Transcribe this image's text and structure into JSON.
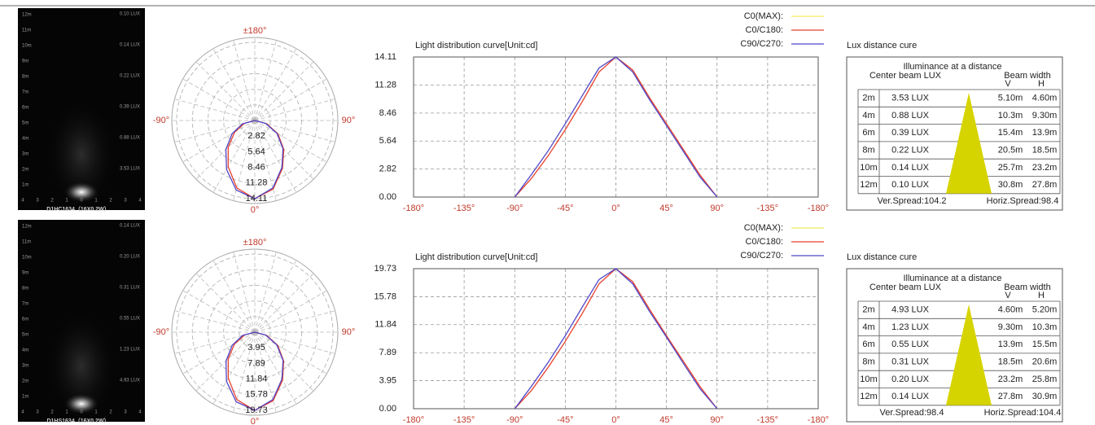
{
  "chart_data": [
    {
      "type": "polar",
      "angle_ticks": [
        {
          "value": 180,
          "label": "±180°"
        },
        {
          "value": -90,
          "label": "-90°"
        },
        {
          "value": 90,
          "label": "90°"
        },
        {
          "value": 0,
          "label": "0°"
        }
      ],
      "rlim": [
        0,
        14.11
      ],
      "rticks": [
        2.82,
        5.64,
        8.46,
        11.28,
        14.11
      ],
      "x": [
        -90,
        -75,
        -60,
        -45,
        -30,
        -15,
        0,
        15,
        30,
        45,
        60,
        75,
        90
      ],
      "series": [
        {
          "color": "#e8412c",
          "values": [
            0,
            1.9,
            4.2,
            6.8,
            9.6,
            12.6,
            14.11,
            12.8,
            10.0,
            7.4,
            4.8,
            2.2,
            0
          ]
        },
        {
          "color": "#4f46c8",
          "values": [
            0,
            2.3,
            4.7,
            7.4,
            10.2,
            13.0,
            14.11,
            12.6,
            9.8,
            7.2,
            4.6,
            2.0,
            0
          ]
        }
      ]
    },
    {
      "type": "line",
      "title": "Light distribution curve[Unit:cd]",
      "xlim": [
        -180,
        180
      ],
      "xticks": [
        {
          "value": -180,
          "label": "-180°"
        },
        {
          "value": -135,
          "label": "-135°"
        },
        {
          "value": -90,
          "label": "-90°"
        },
        {
          "value": -45,
          "label": "-45°"
        },
        {
          "value": 0,
          "label": "0°"
        },
        {
          "value": 45,
          "label": "45°"
        },
        {
          "value": 90,
          "label": "90°"
        },
        {
          "value": 135,
          "label": "-135°"
        },
        {
          "value": 180,
          "label": "-180°"
        }
      ],
      "ylim": [
        0,
        14.11
      ],
      "yticks": [
        {
          "value": 0,
          "label": "0.00"
        },
        2.82,
        5.64,
        8.46,
        11.28,
        14.11
      ],
      "grid": true,
      "legend": "top-right",
      "x": [
        -90,
        -75,
        -60,
        -45,
        -30,
        -15,
        0,
        15,
        30,
        45,
        60,
        75,
        90
      ],
      "series": [
        {
          "name": "C0(MAX):",
          "color": "#f2ec5c"
        },
        {
          "name": "C0/C180:",
          "color": "#e8412c",
          "values": [
            0,
            1.9,
            4.2,
            6.8,
            9.6,
            12.6,
            14.11,
            12.8,
            10.0,
            7.4,
            4.8,
            2.2,
            0
          ]
        },
        {
          "name": "C90/C270:",
          "color": "#4f46c8",
          "values": [
            0,
            2.3,
            4.7,
            7.4,
            10.2,
            13.0,
            14.11,
            12.6,
            9.8,
            7.2,
            4.6,
            2.0,
            0
          ]
        }
      ]
    },
    {
      "type": "polar",
      "angle_ticks": [
        {
          "value": 180,
          "label": "±180°"
        },
        {
          "value": -90,
          "label": "-90°"
        },
        {
          "value": 90,
          "label": "90°"
        },
        {
          "value": 0,
          "label": "0°"
        }
      ],
      "rlim": [
        0,
        19.73
      ],
      "rticks": [
        3.95,
        7.89,
        11.84,
        15.78,
        19.73
      ],
      "x": [
        -90,
        -75,
        -60,
        -45,
        -30,
        -15,
        0,
        15,
        30,
        45,
        60,
        75,
        90
      ],
      "series": [
        {
          "color": "#e8412c",
          "values": [
            0,
            2.6,
            5.9,
            9.5,
            13.4,
            17.6,
            19.73,
            17.9,
            14.0,
            10.3,
            6.7,
            3.1,
            0
          ]
        },
        {
          "color": "#4f46c8",
          "values": [
            0,
            3.2,
            6.6,
            10.3,
            14.3,
            18.2,
            19.73,
            17.6,
            13.7,
            10.1,
            6.4,
            2.8,
            0
          ]
        }
      ]
    },
    {
      "type": "line",
      "title": "Light distribution curve[Unit:cd]",
      "xlim": [
        -180,
        180
      ],
      "xticks": [
        {
          "value": -180,
          "label": "-180°"
        },
        {
          "value": -135,
          "label": "-135°"
        },
        {
          "value": -90,
          "label": "-90°"
        },
        {
          "value": -45,
          "label": "-45°"
        },
        {
          "value": 0,
          "label": "0°"
        },
        {
          "value": 45,
          "label": "45°"
        },
        {
          "value": 90,
          "label": "90°"
        },
        {
          "value": 135,
          "label": "-135°"
        },
        {
          "value": 180,
          "label": "-180°"
        }
      ],
      "ylim": [
        0,
        19.73
      ],
      "yticks": [
        {
          "value": 0,
          "label": "0.00"
        },
        3.95,
        7.89,
        11.84,
        15.78,
        19.73
      ],
      "grid": true,
      "legend": "top-right",
      "x": [
        -90,
        -75,
        -60,
        -45,
        -30,
        -15,
        0,
        15,
        30,
        45,
        60,
        75,
        90
      ],
      "series": [
        {
          "name": "C0(MAX):",
          "color": "#f2ec5c"
        },
        {
          "name": "C0/C180:",
          "color": "#e8412c",
          "values": [
            0,
            2.6,
            5.9,
            9.5,
            13.4,
            17.6,
            19.73,
            17.9,
            14.0,
            10.3,
            6.7,
            3.1,
            0
          ]
        },
        {
          "name": "C90/C270:",
          "color": "#4f46c8",
          "values": [
            0,
            3.2,
            6.6,
            10.3,
            14.3,
            18.2,
            19.73,
            17.6,
            13.7,
            10.1,
            6.4,
            2.8,
            0
          ]
        }
      ]
    }
  ],
  "beam_images": [
    {
      "y_labels": [
        "12m",
        "11m",
        "10m",
        "9m",
        "8m",
        "7m",
        "6m",
        "5m",
        "4m",
        "3m",
        "2m",
        "1m"
      ],
      "x_labels": [
        "4",
        "3",
        "2",
        "1",
        "0",
        "1",
        "2",
        "3",
        "4"
      ],
      "lux_labels": [
        "0.10 LUX",
        "0.14 LUX",
        "0.22 LUX",
        "0.39 LUX",
        "0.88 LUX",
        "3.53 LUX"
      ],
      "caption": "D1HC1634（16X0.2W）"
    },
    {
      "y_labels": [
        "12m",
        "11m",
        "10m",
        "9m",
        "8m",
        "7m",
        "6m",
        "5m",
        "4m",
        "3m",
        "2m",
        "1m"
      ],
      "x_labels": [
        "4",
        "3",
        "2",
        "1",
        "0",
        "1",
        "2",
        "3",
        "4"
      ],
      "lux_labels": [
        "0.14 LUX",
        "0.20 LUX",
        "0.31 LUX",
        "0.55 LUX",
        "1.23 LUX",
        "4.93 LUX"
      ],
      "caption": "D1HS1634（16X0.2W）"
    }
  ],
  "lux_tables": [
    {
      "heading": "Lux distance cure",
      "title": "Illuminance at a distance",
      "col_center": "Center beam LUX",
      "col_width": "Beam width",
      "col_v": "V",
      "col_h": "H",
      "rows": [
        [
          "2m",
          "3.53 LUX",
          "5.10m",
          "4.60m"
        ],
        [
          "4m",
          "0.88 LUX",
          "10.3m",
          "9.30m"
        ],
        [
          "6m",
          "0.39 LUX",
          "15.4m",
          "13.9m"
        ],
        [
          "8m",
          "0.22 LUX",
          "20.5m",
          "18.5m"
        ],
        [
          "10m",
          "0.14 LUX",
          "25.7m",
          "23.2m"
        ],
        [
          "12m",
          "0.10 LUX",
          "30.8m",
          "27.8m"
        ]
      ],
      "ver_spread": "Ver.Spread:104.2",
      "horiz_spread": "Horiz.Spread:98.4"
    },
    {
      "heading": "Lux distance cure",
      "title": "Illuminance at a distance",
      "col_center": "Center beam LUX",
      "col_width": "Beam width",
      "col_v": "V",
      "col_h": "H",
      "rows": [
        [
          "2m",
          "4.93 LUX",
          "4.60m",
          "5.20m"
        ],
        [
          "4m",
          "1.23 LUX",
          "9.30m",
          "10.3m"
        ],
        [
          "6m",
          "0.55 LUX",
          "13.9m",
          "15.5m"
        ],
        [
          "8m",
          "0.31 LUX",
          "18.5m",
          "20.6m"
        ],
        [
          "10m",
          "0.20 LUX",
          "23.2m",
          "25.8m"
        ],
        [
          "12m",
          "0.14 LUX",
          "27.8m",
          "30.9m"
        ]
      ],
      "ver_spread": "Ver.Spread:98.4",
      "horiz_spread": "Horiz.Spread:104.4"
    }
  ]
}
